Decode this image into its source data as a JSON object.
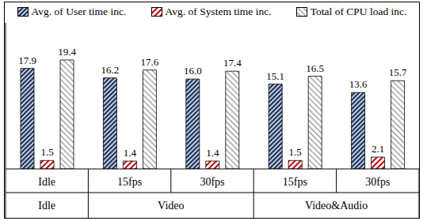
{
  "chart_data": {
    "type": "bar",
    "categories": [
      "Idle",
      "15fps",
      "30fps",
      "15fps",
      "30fps"
    ],
    "category_groups": [
      {
        "name": "Idle",
        "count": 1
      },
      {
        "name": "Video",
        "count": 2
      },
      {
        "name": "Video&Audio",
        "count": 2
      }
    ],
    "series": [
      {
        "name": "Avg. of User time inc.",
        "color": "#1f3864",
        "values": [
          17.9,
          16.2,
          16.0,
          15.1,
          13.6
        ],
        "value_labels": [
          "17.9",
          "16.2",
          "16.0",
          "15.1",
          "13.6"
        ]
      },
      {
        "name": "Avg. of System time inc.",
        "color": "#c00000",
        "values": [
          1.5,
          1.4,
          1.4,
          1.5,
          2.1
        ]
      },
      {
        "name": "Total of CPU load inc.",
        "color": "#8c8c8c",
        "values": [
          19.4,
          17.6,
          17.4,
          16.5,
          15.7
        ]
      }
    ],
    "ylim": [
      0,
      26
    ],
    "yticks": [],
    "tick_labels": "x",
    "data_labels": true,
    "legend": "top"
  }
}
